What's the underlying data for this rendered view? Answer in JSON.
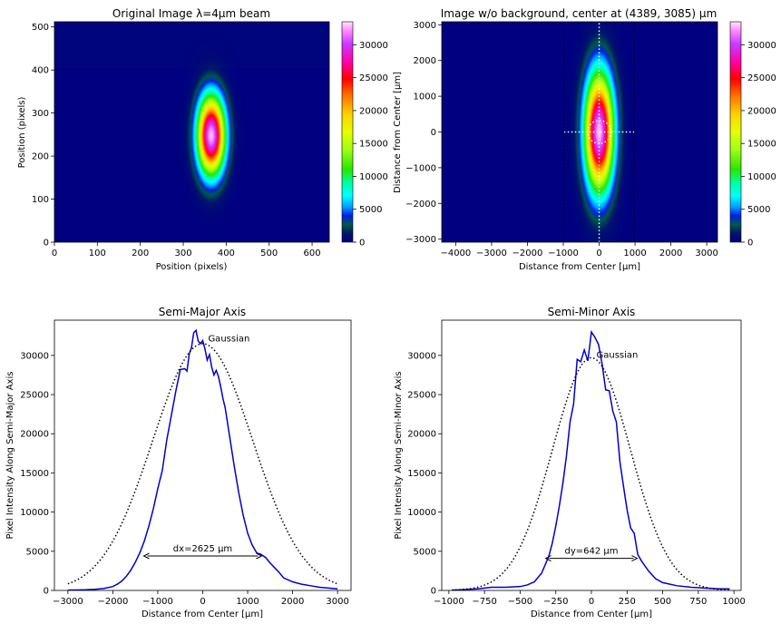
{
  "chart_data": [
    {
      "type": "heatmap",
      "title": "Original Image λ=4µm beam",
      "xlabel": "Position (pixels)",
      "ylabel": "Position (pixels)",
      "xlim": [
        0,
        640
      ],
      "ylim": [
        512,
        0
      ],
      "xticks": [
        "0",
        "100",
        "200",
        "300",
        "400",
        "500",
        "600"
      ],
      "yticks": [
        "0",
        "100",
        "200",
        "300",
        "400",
        "500"
      ],
      "colorbar": {
        "min": 0,
        "max": 33500,
        "ticks": [
          "0",
          "5000",
          "10000",
          "15000",
          "20000",
          "25000",
          "30000"
        ]
      },
      "beam": {
        "center_x": 365,
        "center_y": 248,
        "sigma_x": 22,
        "sigma_y": 62,
        "peak": 33000
      }
    },
    {
      "type": "heatmap",
      "title": "Image w/o background, center at (4389, 3085) µm",
      "xlabel": "Distance from Center [µm]",
      "ylabel": "Distance from Center [µm]",
      "xlim": [
        -4389,
        3300
      ],
      "ylim": [
        3085,
        -3085
      ],
      "xticks": [
        "−4000",
        "−3000",
        "−2000",
        "−1000",
        "0",
        "1000",
        "2000",
        "3000"
      ],
      "yticks": [
        "−3000",
        "−2000",
        "−1000",
        "0",
        "1000",
        "2000",
        "3000"
      ],
      "colorbar": {
        "min": 0,
        "max": 33500,
        "ticks": [
          "0",
          "5000",
          "10000",
          "15000",
          "20000",
          "25000",
          "30000"
        ]
      },
      "beam": {
        "center_x": 0,
        "center_y": 0,
        "sigma_x": 273,
        "sigma_y": 1115,
        "peak": 33000
      },
      "crosshair": {
        "major_half_length": 3085,
        "minor_half_length": 980
      }
    },
    {
      "type": "line",
      "title": "Semi-Major Axis",
      "xlabel": "Distance from Center [µm]",
      "ylabel": "Pixel Intensity Along Semi-Major Axis",
      "xlim": [
        -3300,
        3300
      ],
      "ylim": [
        0,
        34500
      ],
      "xticks": [
        -3000,
        -2000,
        -1000,
        0,
        1000,
        2000,
        3000
      ],
      "yticks": [
        0,
        5000,
        10000,
        15000,
        20000,
        25000,
        30000
      ],
      "xtick_labels": [
        "−3000",
        "−2000",
        "−1000",
        "0",
        "1000",
        "2000",
        "3000"
      ],
      "ytick_labels": [
        "0",
        "5000",
        "10000",
        "15000",
        "20000",
        "25000",
        "30000"
      ],
      "series": [
        {
          "name": "",
          "style": "solid",
          "color": "#0000cc",
          "x": [
            -3000,
            -2800,
            -2600,
            -2400,
            -2200,
            -2000,
            -1900,
            -1800,
            -1700,
            -1600,
            -1500,
            -1400,
            -1300,
            -1200,
            -1100,
            -1000,
            -900,
            -800,
            -700,
            -600,
            -500,
            -400,
            -350,
            -300,
            -250,
            -200,
            -150,
            -100,
            -50,
            0,
            50,
            100,
            150,
            200,
            250,
            300,
            350,
            400,
            450,
            500,
            600,
            700,
            800,
            900,
            1000,
            1100,
            1200,
            1300,
            1400,
            1500,
            1600,
            1700,
            1800,
            2000,
            2200,
            2400,
            2600,
            2800,
            3000
          ],
          "y": [
            50,
            60,
            80,
            150,
            250,
            500,
            800,
            1200,
            1800,
            2600,
            3600,
            4800,
            6300,
            8200,
            10400,
            13000,
            15300,
            19200,
            22300,
            25400,
            28200,
            28300,
            28000,
            30200,
            31000,
            32900,
            33200,
            31800,
            31500,
            31900,
            30800,
            29400,
            30100,
            28500,
            27500,
            28100,
            27300,
            26000,
            24500,
            23300,
            19600,
            15900,
            12500,
            9600,
            7300,
            5800,
            4800,
            4600,
            4200,
            3500,
            2900,
            2300,
            1600,
            1100,
            800,
            600,
            400,
            300,
            200
          ]
        },
        {
          "name": "Gaussian",
          "style": "dotted",
          "color": "#000000",
          "gaussian": {
            "amplitude": 31500,
            "mean": 0,
            "sigma": 1115,
            "xmin": -3000,
            "xmax": 3000
          }
        }
      ],
      "annotations": [
        {
          "text": "Gaussian",
          "x": 120,
          "y": 31800
        },
        {
          "text": "dx=2625 µm",
          "x": -1312,
          "x2": 1312,
          "y": 4400,
          "label_x": 0,
          "label_y": 5000
        }
      ]
    },
    {
      "type": "line",
      "title": "Semi-Minor Axis",
      "xlabel": "Distance from Center [µm]",
      "ylabel": "Pixel Intensity Along Semi-Minor Axis",
      "xlim": [
        -1050,
        1050
      ],
      "ylim": [
        0,
        34500
      ],
      "xticks": [
        -1000,
        -750,
        -500,
        -250,
        0,
        250,
        500,
        750,
        1000
      ],
      "yticks": [
        0,
        5000,
        10000,
        15000,
        20000,
        25000,
        30000
      ],
      "xtick_labels": [
        "−1000",
        "−750",
        "−500",
        "−250",
        "0",
        "250",
        "500",
        "750",
        "1000"
      ],
      "ytick_labels": [
        "0",
        "5000",
        "10000",
        "15000",
        "20000",
        "25000",
        "30000"
      ],
      "series": [
        {
          "name": "",
          "style": "solid",
          "color": "#0000cc",
          "x": [
            -980,
            -900,
            -800,
            -700,
            -600,
            -500,
            -450,
            -400,
            -350,
            -300,
            -275,
            -250,
            -225,
            -200,
            -175,
            -150,
            -125,
            -100,
            -75,
            -50,
            -25,
            0,
            25,
            50,
            75,
            100,
            125,
            150,
            175,
            200,
            225,
            250,
            275,
            300,
            325,
            350,
            400,
            450,
            500,
            600,
            700,
            800,
            900,
            970
          ],
          "y": [
            50,
            100,
            200,
            400,
            400,
            500,
            700,
            1100,
            2200,
            4300,
            6000,
            8200,
            10800,
            13700,
            17200,
            21500,
            23800,
            29500,
            29200,
            30700,
            29300,
            33000,
            32300,
            31400,
            28900,
            25600,
            25500,
            22900,
            21500,
            16400,
            13300,
            10300,
            8000,
            7300,
            4600,
            3800,
            2500,
            1500,
            1000,
            600,
            400,
            300,
            200,
            200
          ]
        },
        {
          "name": "Gaussian",
          "style": "dotted",
          "color": "#000000",
          "gaussian": {
            "amplitude": 29700,
            "mean": 0,
            "sigma": 273,
            "xmin": -980,
            "xmax": 970
          }
        }
      ],
      "annotations": [
        {
          "text": "Gaussian",
          "x": 35,
          "y": 29700
        },
        {
          "text": "dy=642 µm",
          "x": -321,
          "x2": 321,
          "y": 4100,
          "label_x": 0,
          "label_y": 4700
        }
      ]
    }
  ]
}
